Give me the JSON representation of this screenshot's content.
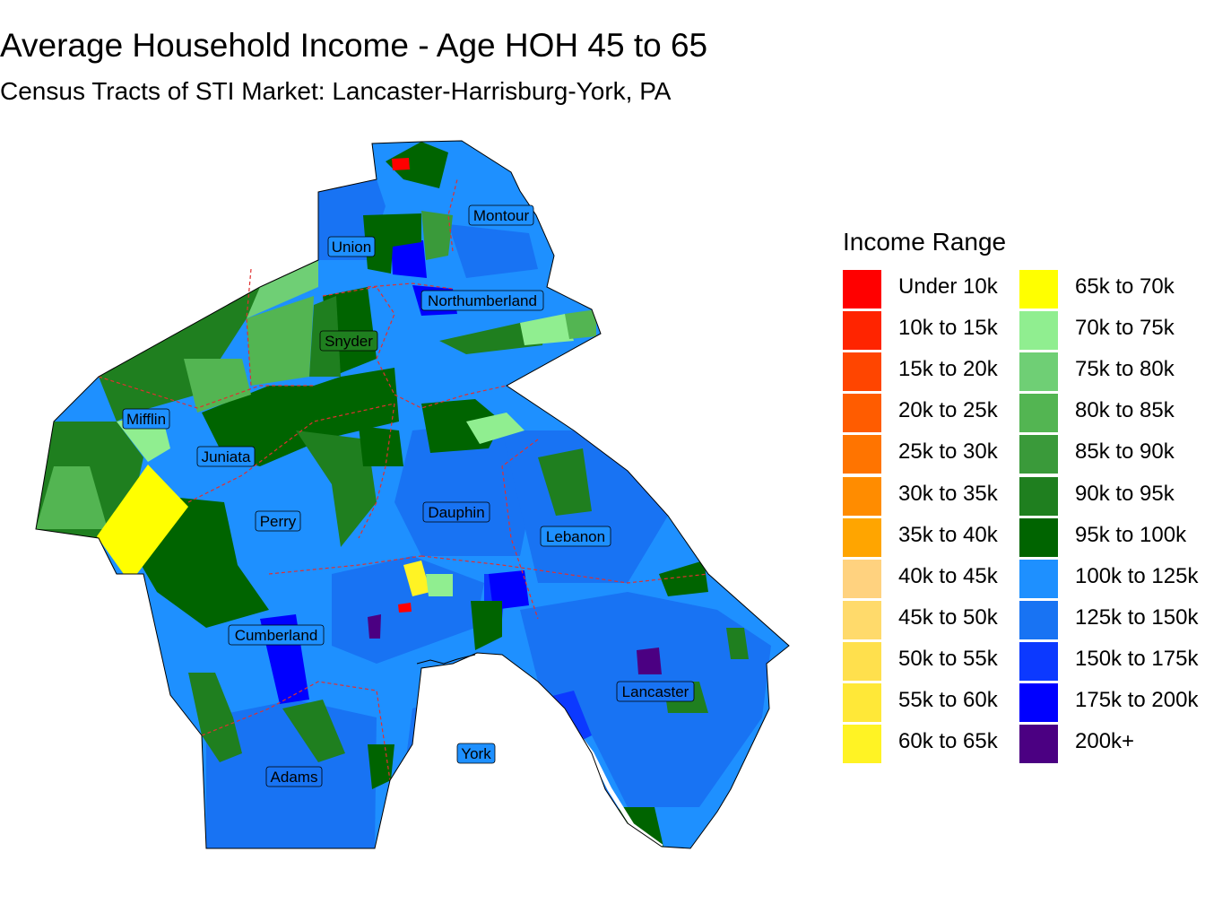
{
  "title": "Average Household Income - Age HOH 45 to 65",
  "subtitle": "Census Tracts of STI Market: Lancaster-Harrisburg-York, PA",
  "legend": {
    "title": "Income Range",
    "items": [
      {
        "label": "Under 10k",
        "color": "#FF0000"
      },
      {
        "label": "10k to 15k",
        "color": "#FF2400"
      },
      {
        "label": "15k to 20k",
        "color": "#FF4500"
      },
      {
        "label": "20k to 25k",
        "color": "#FF5C00"
      },
      {
        "label": "25k to 30k",
        "color": "#FF7400"
      },
      {
        "label": "30k to 35k",
        "color": "#FF8C00"
      },
      {
        "label": "35k to 40k",
        "color": "#FFA500"
      },
      {
        "label": "40k to 45k",
        "color": "#FFD27F"
      },
      {
        "label": "45k to 50k",
        "color": "#FFDA6B"
      },
      {
        "label": "50k to 55k",
        "color": "#FFE04D"
      },
      {
        "label": "55k to 60k",
        "color": "#FFE838"
      },
      {
        "label": "60k to 65k",
        "color": "#FFF324"
      },
      {
        "label": "65k to 70k",
        "color": "#FFFF00"
      },
      {
        "label": "70k to 75k",
        "color": "#90EE90"
      },
      {
        "label": "75k to 80k",
        "color": "#6FCF75"
      },
      {
        "label": "80k to 85k",
        "color": "#53B552"
      },
      {
        "label": "85k to 90k",
        "color": "#3A9A3A"
      },
      {
        "label": "90k to 95k",
        "color": "#1F7F1F"
      },
      {
        "label": "95k to 100k",
        "color": "#006400"
      },
      {
        "label": "100k to 125k",
        "color": "#1E90FF"
      },
      {
        "label": "125k to 150k",
        "color": "#1873F3"
      },
      {
        "label": "150k to 175k",
        "color": "#0C39FF"
      },
      {
        "label": "175k to 200k",
        "color": "#0000FF"
      },
      {
        "label": "200k+",
        "color": "#4B0082"
      }
    ]
  },
  "counties": [
    {
      "name": "Montour"
    },
    {
      "name": "Union"
    },
    {
      "name": "Northumberland"
    },
    {
      "name": "Snyder"
    },
    {
      "name": "Mifflin"
    },
    {
      "name": "Juniata"
    },
    {
      "name": "Perry"
    },
    {
      "name": "Dauphin"
    },
    {
      "name": "Lebanon"
    },
    {
      "name": "Cumberland"
    },
    {
      "name": "Lancaster"
    },
    {
      "name": "York"
    },
    {
      "name": "Adams"
    }
  ]
}
